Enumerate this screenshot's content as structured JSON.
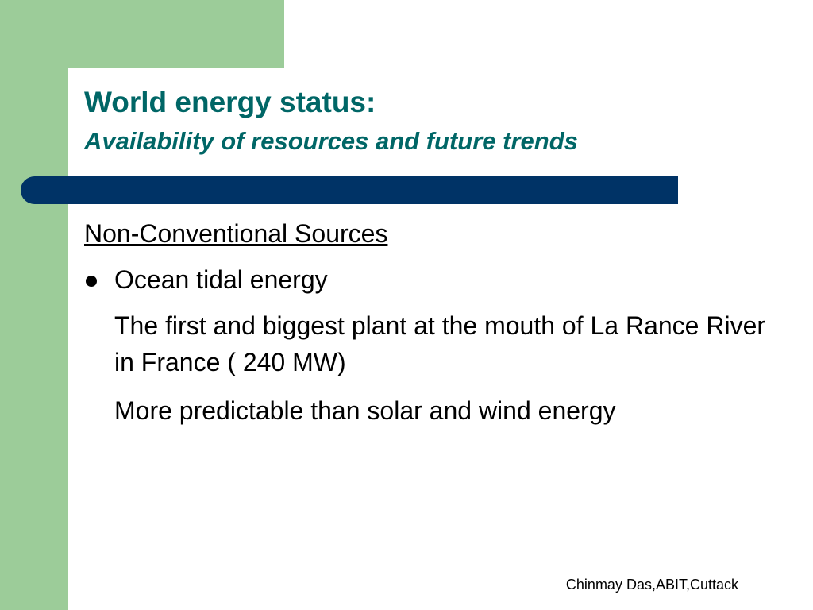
{
  "title": "World energy status:",
  "subtitle": "Availability of resources and future trends",
  "section": "Non-Conventional Sources",
  "bullet": "Ocean tidal energy",
  "paragraphs": [
    "The first and biggest plant at the mouth of La Rance River in France ( 240 MW)",
    "More predictable than solar and wind energy"
  ],
  "footer": "Chinmay Das,ABIT,Cuttack"
}
